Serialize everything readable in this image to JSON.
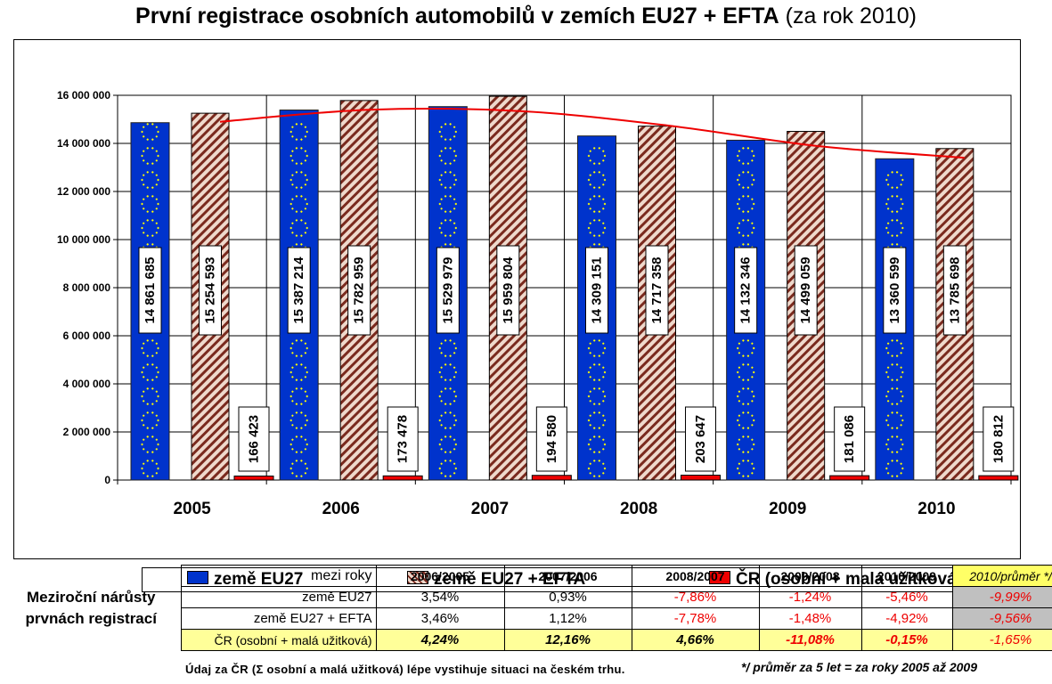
{
  "title": {
    "main": "První registrace osobních automobilů v zemích EU27 + EFTA",
    "suffix": "(za rok 2010)"
  },
  "colors": {
    "eu27": "#0033cc",
    "eu27_stars": "#ffff00",
    "efta_dark": "#7a2a1e",
    "efta_light": "#efd9cc",
    "cr": "#ee0000",
    "trend": "#ee0000",
    "table_highlight": "#ffff99",
    "table_gray": "#c0c0c0"
  },
  "chart_data": {
    "type": "bar",
    "title": "První registrace osobních automobilů v zemích EU27 + EFTA (za rok 2010)",
    "categories": [
      "2005",
      "2006",
      "2007",
      "2008",
      "2009",
      "2010"
    ],
    "ylim": [
      0,
      16000000
    ],
    "yticks": [
      0,
      2000000,
      4000000,
      6000000,
      8000000,
      10000000,
      12000000,
      14000000,
      16000000
    ],
    "ytick_labels": [
      "0",
      "2 000 000",
      "4 000 000",
      "6 000 000",
      "8 000 000",
      "10 000 000",
      "12 000 000",
      "14 000 000",
      "16 000 000"
    ],
    "grid": true,
    "legend_position": "bottom",
    "series": [
      {
        "name": "země EU27",
        "values": [
          14861685,
          15387214,
          15529979,
          14309151,
          14132346,
          13360599
        ],
        "labels": [
          "14 861 685",
          "15 387 214",
          "15 529 979",
          "14 309 151",
          "14 132 346",
          "13 360 599"
        ]
      },
      {
        "name": "země EU27 + EFTA",
        "values": [
          15254593,
          15782959,
          15959804,
          14717358,
          14499059,
          13785698
        ],
        "labels": [
          "15 254 593",
          "15 782 959",
          "15 959 804",
          "14 717 358",
          "14 499 059",
          "13 785 698"
        ]
      },
      {
        "name": "ČR (osobní + malá užitková)",
        "values": [
          166423,
          173478,
          194580,
          203647,
          181086,
          180812
        ],
        "labels": [
          "166 423",
          "173 478",
          "194 580",
          "203 647",
          "181 086",
          "180 812"
        ]
      }
    ],
    "trend_line": {
      "type": "polynomial trend (red line)",
      "values": [
        14900000,
        15400000,
        15350000,
        14750000,
        13900000,
        13400000
      ]
    }
  },
  "legend": {
    "eu27": "země EU27",
    "efta": "země EU27 + EFTA",
    "cr": "ČR (osobní + malá užitková)"
  },
  "table": {
    "side_label_1": "Meziroční nárůsty",
    "side_label_2": "prvnách registrací",
    "header_label": "mezi roky",
    "columns": [
      "2006/2005",
      "2007/2006",
      "2008/2007",
      "2009/2008",
      "2010/2009",
      "2010/průměr */"
    ],
    "rows": [
      {
        "label": "země EU27",
        "values": [
          "3,54%",
          "0,93%",
          "-7,86%",
          "-1,24%",
          "-5,46%",
          "-9,99%"
        ]
      },
      {
        "label": "země EU27 + EFTA",
        "values": [
          "3,46%",
          "1,12%",
          "-7,78%",
          "-1,48%",
          "-4,92%",
          "-9,56%"
        ]
      },
      {
        "label": "ČR (osobní + malá užitková)",
        "values": [
          "4,24%",
          "12,16%",
          "4,66%",
          "-11,08%",
          "-0,15%",
          "-1,65%"
        ]
      }
    ]
  },
  "footnotes": {
    "left": "Údaj za ČR (Σ osobní a malá užitková) lépe vystihuje situaci na českém trhu.",
    "right": "*/ průměr za 5 let = za roky 2005 až 2009"
  }
}
